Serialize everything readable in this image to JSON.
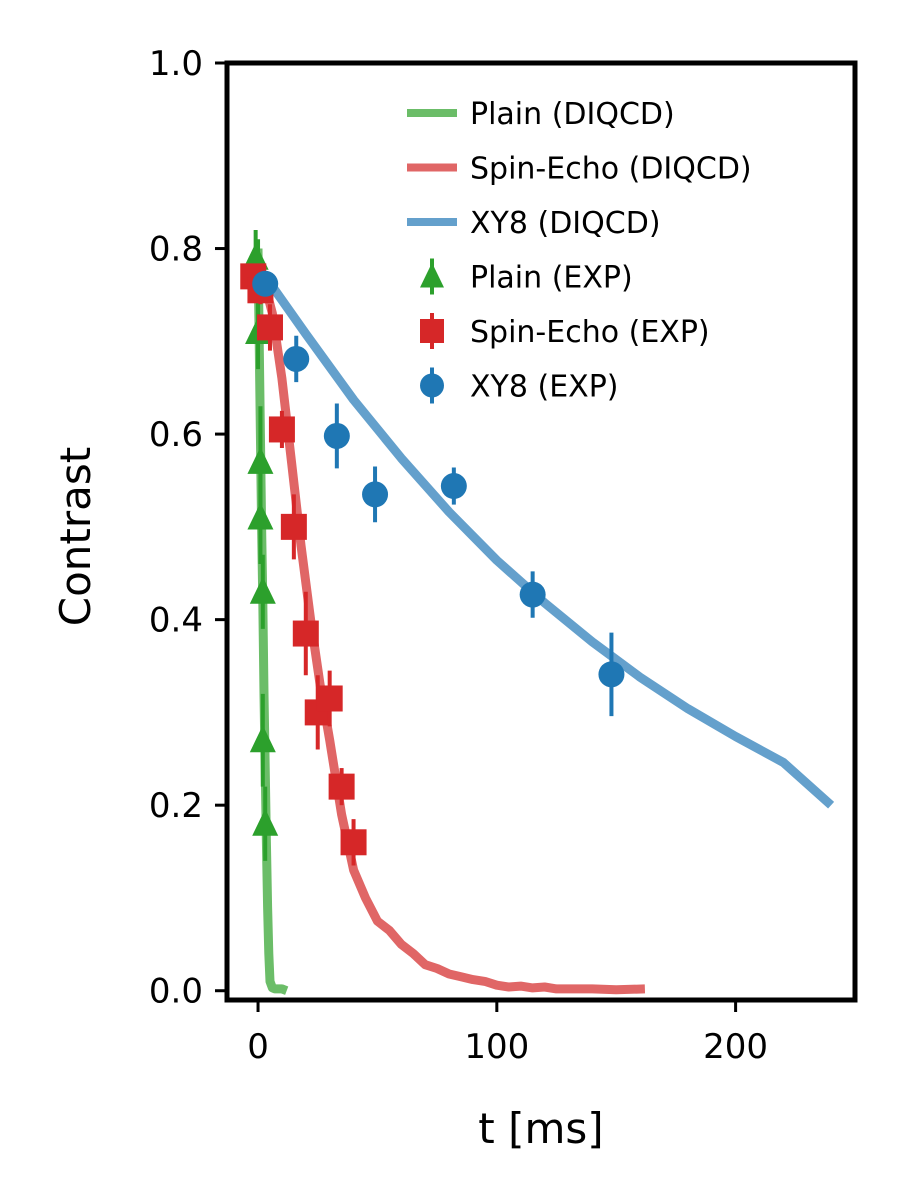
{
  "chart_data": {
    "type": "line",
    "xlabel": "t [ms]",
    "ylabel": "Contrast",
    "xlim": [
      -13,
      250
    ],
    "ylim": [
      -0.01,
      1.0
    ],
    "xticks": [
      0,
      100,
      200
    ],
    "yticks": [
      0.0,
      0.2,
      0.4,
      0.6,
      0.8,
      1.0
    ],
    "xtick_labels": [
      "0",
      "100",
      "200"
    ],
    "ytick_labels": [
      "0.0",
      "0.2",
      "0.4",
      "0.6",
      "0.8",
      "1.0"
    ],
    "grid": false,
    "legend_position": "top-right",
    "legend": [
      {
        "label": "Plain (DIQCD)",
        "kind": "line",
        "series": "plain_diqcd"
      },
      {
        "label": "Spin-Echo (DIQCD)",
        "kind": "line",
        "series": "spin_echo_diqcd"
      },
      {
        "label": "XY8 (DIQCD)",
        "kind": "line",
        "series": "xy8_diqcd"
      },
      {
        "label": "Plain (EXP)",
        "kind": "marker",
        "marker": "triangle",
        "series": "plain_exp"
      },
      {
        "label": "Spin-Echo (EXP)",
        "kind": "marker",
        "marker": "square",
        "series": "spin_echo_exp"
      },
      {
        "label": "XY8 (EXP)",
        "kind": "marker",
        "marker": "circle",
        "series": "xy8_exp"
      }
    ],
    "lines": [
      {
        "id": "plain_diqcd",
        "color": "#6bbd68",
        "x": [
          0,
          0.5,
          1,
          1.5,
          2,
          2.5,
          3,
          3.5,
          4,
          4.5,
          5,
          6,
          7,
          8,
          10,
          12
        ],
        "y": [
          0.8,
          0.7,
          0.6,
          0.5,
          0.42,
          0.32,
          0.24,
          0.16,
          0.09,
          0.04,
          0.01,
          0.003,
          0.002,
          0.002,
          0.002,
          0.0
        ]
      },
      {
        "id": "spin_echo_diqcd",
        "color": "#e06666",
        "x": [
          0,
          3,
          6,
          10,
          14,
          18,
          22,
          26,
          30,
          35,
          40,
          45,
          50,
          55,
          60,
          65,
          70,
          75,
          80,
          85,
          90,
          95,
          100,
          105,
          110,
          115,
          120,
          125,
          130,
          140,
          150,
          162
        ],
        "y": [
          0.77,
          0.76,
          0.73,
          0.66,
          0.57,
          0.48,
          0.4,
          0.33,
          0.27,
          0.19,
          0.13,
          0.1,
          0.075,
          0.065,
          0.05,
          0.04,
          0.028,
          0.024,
          0.018,
          0.015,
          0.012,
          0.01,
          0.006,
          0.004,
          0.005,
          0.003,
          0.004,
          0.002,
          0.002,
          0.002,
          0.001,
          0.002
        ]
      },
      {
        "id": "xy8_diqcd",
        "color": "#64a0cc",
        "x": [
          3,
          20,
          40,
          60,
          80,
          100,
          120,
          140,
          160,
          180,
          200,
          220,
          240
        ],
        "y": [
          0.77,
          0.708,
          0.637,
          0.574,
          0.516,
          0.464,
          0.418,
          0.376,
          0.338,
          0.304,
          0.274,
          0.246,
          0.2
        ]
      }
    ],
    "points": [
      {
        "id": "plain_exp",
        "color": "#2ca02c",
        "marker": "triangle",
        "x": [
          -1,
          0,
          0,
          1,
          1,
          2,
          2,
          3
        ],
        "y": [
          0.79,
          0.77,
          0.71,
          0.57,
          0.51,
          0.43,
          0.27,
          0.18
        ],
        "err": [
          0.03,
          0.04,
          0.04,
          0.06,
          0.05,
          0.04,
          0.05,
          0.04
        ]
      },
      {
        "id": "spin_echo_exp",
        "color": "#d62728",
        "marker": "square",
        "x": [
          -2,
          1,
          5,
          10,
          15,
          20,
          25,
          30,
          35,
          40
        ],
        "y": [
          0.77,
          0.755,
          0.715,
          0.605,
          0.5,
          0.385,
          0.3,
          0.315,
          0.22,
          0.16
        ],
        "err": [
          0.01,
          0.015,
          0.025,
          0.02,
          0.035,
          0.045,
          0.04,
          0.03,
          0.02,
          0.025
        ]
      },
      {
        "id": "xy8_exp",
        "color": "#1f77b4",
        "marker": "circle",
        "x": [
          3,
          16,
          33,
          49,
          82,
          115,
          148
        ],
        "y": [
          0.762,
          0.681,
          0.598,
          0.535,
          0.544,
          0.427,
          0.341
        ],
        "err": [
          0.01,
          0.025,
          0.035,
          0.03,
          0.02,
          0.025,
          0.045
        ]
      }
    ]
  }
}
